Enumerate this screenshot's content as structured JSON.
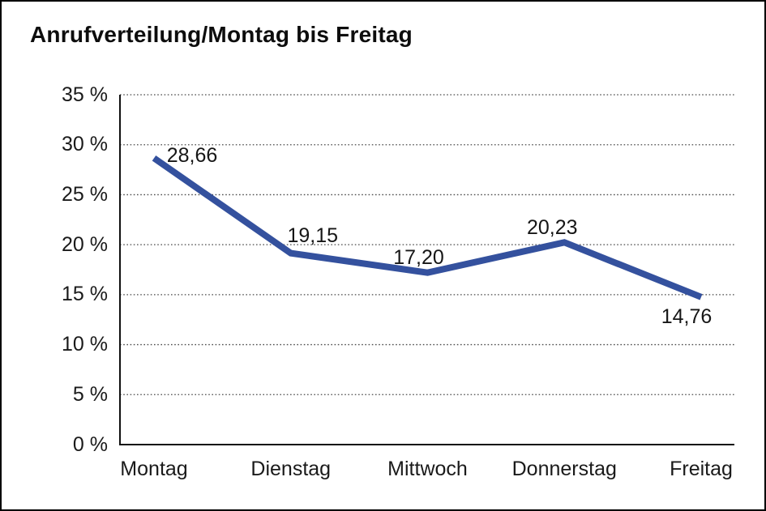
{
  "window": {
    "background": "#ffffff",
    "frame_border_color": "#000000"
  },
  "header": {
    "title": "Anrufverteilung/Montag bis Freitag"
  },
  "chart_data": {
    "type": "line",
    "title": "Anrufverteilung/Montag bis Freitag",
    "categories": [
      "Montag",
      "Dienstag",
      "Mittwoch",
      "Donnerstag",
      "Freitag"
    ],
    "series": [
      {
        "name": "Anrufverteilung",
        "values": [
          28.66,
          19.15,
          17.2,
          20.23,
          14.76
        ]
      }
    ],
    "value_labels": [
      "28,66",
      "19,15",
      "17,20",
      "20,23",
      "14,76"
    ],
    "xlabel": "",
    "ylabel": "",
    "y_axis": {
      "min": 0,
      "max": 35,
      "step": 5,
      "unit": "%",
      "tick_labels": [
        "0 %",
        "5 %",
        "10 %",
        "15 %",
        "20 %",
        "25 %",
        "30 %",
        "35 %"
      ]
    },
    "ylim": [
      0,
      35
    ],
    "grid": "horizontal-dotted",
    "legend": "none",
    "line_color": "#34519E",
    "axis_color": "#111111",
    "gridline_color": "#4a4a4a",
    "text_color": "#1a1a1a"
  }
}
